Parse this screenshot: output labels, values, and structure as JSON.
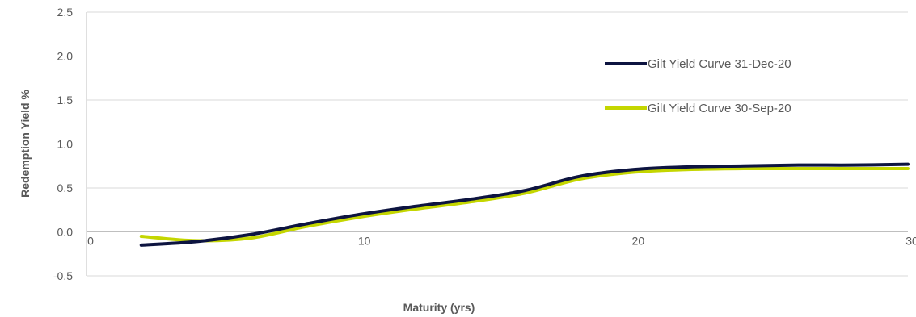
{
  "chart_data": {
    "type": "line",
    "xlabel": "Maturity (yrs)",
    "ylabel": "Redemption Yield %",
    "xlim": [
      0,
      30
    ],
    "ylim": [
      -0.5,
      2.5
    ],
    "xticks": [
      0,
      10,
      20,
      30
    ],
    "yticks": [
      -0.5,
      0.0,
      0.5,
      1.0,
      1.5,
      2.0,
      2.5
    ],
    "ytick_labels": [
      "-0.5",
      "0.0",
      "0.5",
      "1.0",
      "1.5",
      "2.0",
      "2.5"
    ],
    "xtick_labels": [
      "0",
      "10",
      "20",
      "30"
    ],
    "grid": "horizontal",
    "legend_position": "right",
    "series": [
      {
        "name": "Gilt Yield Curve 31-Dec-20",
        "color": "#0d1440",
        "x": [
          2,
          4,
          6,
          8,
          10,
          12,
          14,
          16,
          18,
          20,
          22,
          24,
          26,
          28,
          30
        ],
        "y": [
          -0.15,
          -0.11,
          -0.03,
          0.09,
          0.2,
          0.29,
          0.37,
          0.47,
          0.63,
          0.71,
          0.74,
          0.75,
          0.76,
          0.76,
          0.77
        ]
      },
      {
        "name": "Gilt Yield Curve 30-Sep-20",
        "color": "#c4d600",
        "x": [
          2,
          4,
          6,
          8,
          10,
          12,
          14,
          16,
          18,
          20,
          22,
          24,
          26,
          28,
          30
        ],
        "y": [
          -0.05,
          -0.1,
          -0.07,
          0.06,
          0.17,
          0.26,
          0.34,
          0.44,
          0.6,
          0.68,
          0.71,
          0.72,
          0.72,
          0.72,
          0.72
        ]
      }
    ]
  }
}
